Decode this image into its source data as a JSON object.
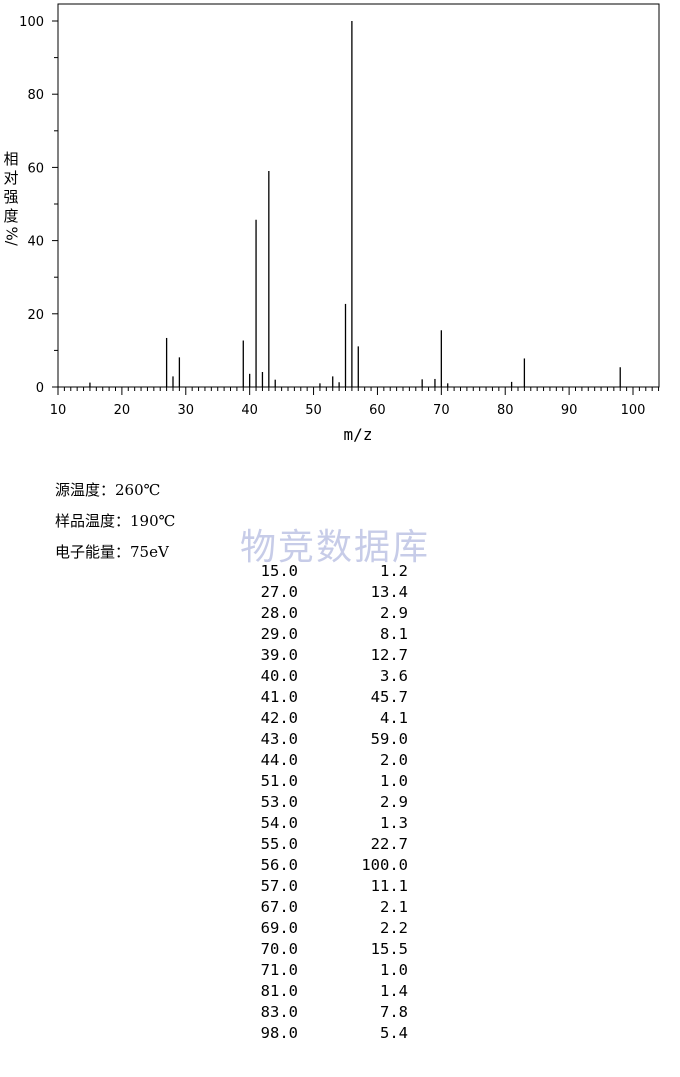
{
  "chart_data": {
    "type": "bar",
    "xlabel": "m/z",
    "ylabel_chars": [
      "相",
      "对",
      "强",
      "度"
    ],
    "ylabel_unit": "%/",
    "xlim": [
      10,
      104
    ],
    "ylim": [
      0,
      100
    ],
    "xticks": [
      10,
      20,
      30,
      40,
      50,
      60,
      70,
      80,
      90,
      100
    ],
    "yticks": [
      0,
      20,
      40,
      60,
      80,
      100
    ],
    "grid": false,
    "x": [
      15,
      27,
      28,
      29,
      39,
      40,
      41,
      42,
      43,
      44,
      51,
      53,
      54,
      55,
      56,
      57,
      67,
      69,
      70,
      71,
      81,
      83,
      98
    ],
    "values": [
      1.2,
      13.4,
      2.9,
      8.1,
      12.7,
      3.6,
      45.7,
      4.1,
      59.0,
      2.0,
      1.0,
      2.9,
      1.3,
      22.7,
      100.0,
      11.1,
      2.1,
      2.2,
      15.5,
      1.0,
      1.4,
      7.8,
      5.4
    ]
  },
  "info": {
    "source_temp": "源温度：260℃",
    "sample_temp": "样品温度：190℃",
    "electron_energy": "电子能量：75eV"
  },
  "watermark": "物竞数据库",
  "peak_table": [
    {
      "mz": "15.0",
      "abundance": "1.2"
    },
    {
      "mz": "27.0",
      "abundance": "13.4"
    },
    {
      "mz": "28.0",
      "abundance": "2.9"
    },
    {
      "mz": "29.0",
      "abundance": "8.1"
    },
    {
      "mz": "39.0",
      "abundance": "12.7"
    },
    {
      "mz": "40.0",
      "abundance": "3.6"
    },
    {
      "mz": "41.0",
      "abundance": "45.7"
    },
    {
      "mz": "42.0",
      "abundance": "4.1"
    },
    {
      "mz": "43.0",
      "abundance": "59.0"
    },
    {
      "mz": "44.0",
      "abundance": "2.0"
    },
    {
      "mz": "51.0",
      "abundance": "1.0"
    },
    {
      "mz": "53.0",
      "abundance": "2.9"
    },
    {
      "mz": "54.0",
      "abundance": "1.3"
    },
    {
      "mz": "55.0",
      "abundance": "22.7"
    },
    {
      "mz": "56.0",
      "abundance": "100.0"
    },
    {
      "mz": "57.0",
      "abundance": "11.1"
    },
    {
      "mz": "67.0",
      "abundance": "2.1"
    },
    {
      "mz": "69.0",
      "abundance": "2.2"
    },
    {
      "mz": "70.0",
      "abundance": "15.5"
    },
    {
      "mz": "71.0",
      "abundance": "1.0"
    },
    {
      "mz": "81.0",
      "abundance": "1.4"
    },
    {
      "mz": "83.0",
      "abundance": "7.8"
    },
    {
      "mz": "98.0",
      "abundance": "5.4"
    }
  ]
}
